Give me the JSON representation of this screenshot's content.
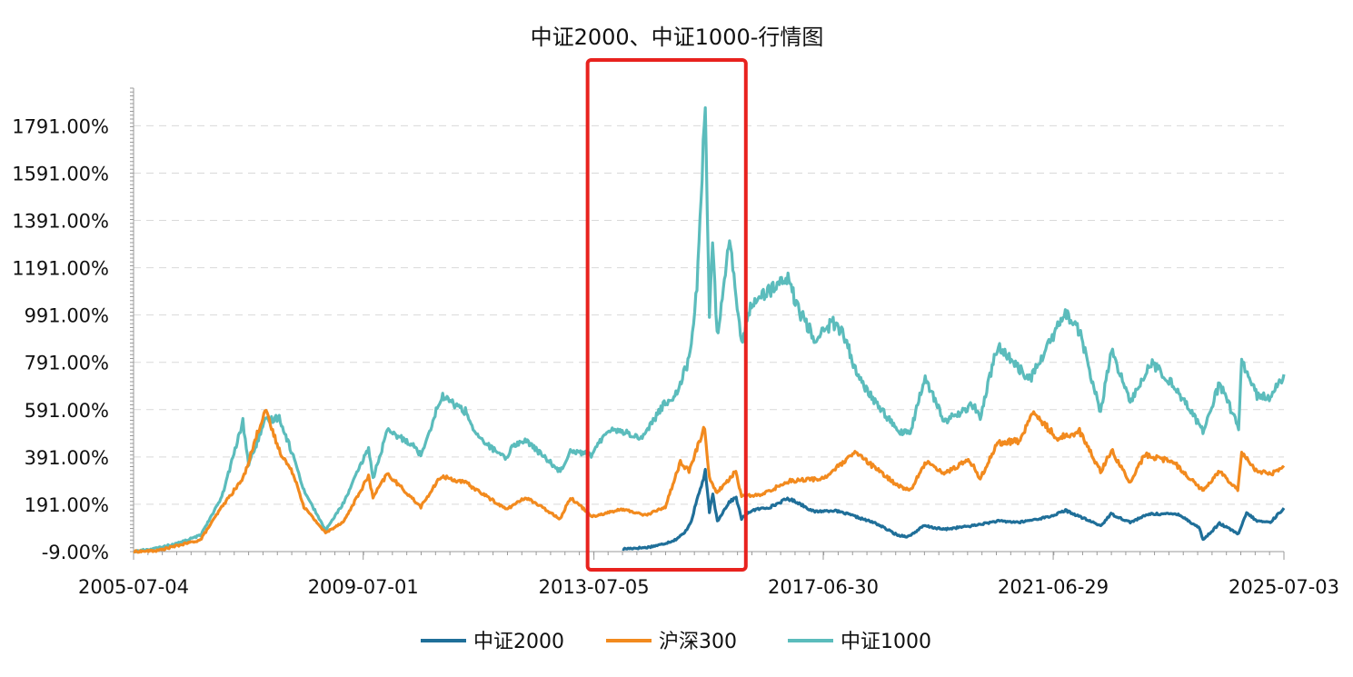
{
  "chart_data": {
    "type": "line",
    "title": "中证2000、中证1000-行情图",
    "xlabel": "",
    "ylabel": "",
    "x_range": [
      "2005-07-04",
      "2025-07-03"
    ],
    "x_ticks": [
      "2005-07-04",
      "2009-07-01",
      "2013-07-05",
      "2017-06-30",
      "2021-06-29",
      "2025-07-03"
    ],
    "y_ticks": [
      -9,
      191,
      391,
      591,
      791,
      991,
      1191,
      1391,
      1591,
      1791
    ],
    "y_tick_labels": [
      "-9.00%",
      "191.00%",
      "391.00%",
      "591.00%",
      "791.00%",
      "991.00%",
      "1191.00%",
      "1391.00%",
      "1591.00%",
      "1791.00%"
    ],
    "ylim": [
      -9,
      1950
    ],
    "y_unit": "%",
    "grid": "horizontal-dashed",
    "legend_position": "bottom",
    "highlight_range": [
      "2013-07-05",
      "2016-01-15"
    ],
    "series": [
      {
        "name": "中证2000",
        "color": "#1f6f99",
        "points": [
          [
            "2014-01-02",
            2
          ],
          [
            "2014-03-01",
            5
          ],
          [
            "2014-06-01",
            8
          ],
          [
            "2014-09-01",
            20
          ],
          [
            "2014-12-01",
            40
          ],
          [
            "2015-02-01",
            70
          ],
          [
            "2015-03-15",
            120
          ],
          [
            "2015-04-20",
            210
          ],
          [
            "2015-06-01",
            300
          ],
          [
            "2015-06-12",
            330
          ],
          [
            "2015-07-08",
            160
          ],
          [
            "2015-07-30",
            230
          ],
          [
            "2015-08-28",
            120
          ],
          [
            "2015-09-15",
            140
          ],
          [
            "2015-11-10",
            200
          ],
          [
            "2015-12-25",
            220
          ],
          [
            "2016-01-28",
            130
          ],
          [
            "2016-04-01",
            165
          ],
          [
            "2016-08-01",
            180
          ],
          [
            "2016-11-15",
            215
          ],
          [
            "2017-01-15",
            200
          ],
          [
            "2017-05-01",
            160
          ],
          [
            "2017-09-01",
            165
          ],
          [
            "2017-12-01",
            150
          ],
          [
            "2018-06-01",
            110
          ],
          [
            "2018-10-15",
            60
          ],
          [
            "2018-12-25",
            55
          ],
          [
            "2019-04-01",
            100
          ],
          [
            "2019-08-01",
            85
          ],
          [
            "2020-02-01",
            100
          ],
          [
            "2020-07-10",
            120
          ],
          [
            "2020-12-01",
            115
          ],
          [
            "2021-06-15",
            140
          ],
          [
            "2021-09-15",
            165
          ],
          [
            "2022-04-27",
            100
          ],
          [
            "2022-07-01",
            150
          ],
          [
            "2022-10-31",
            115
          ],
          [
            "2023-03-01",
            150
          ],
          [
            "2023-09-01",
            150
          ],
          [
            "2024-01-15",
            90
          ],
          [
            "2024-02-05",
            40
          ],
          [
            "2024-05-20",
            110
          ],
          [
            "2024-09-18",
            65
          ],
          [
            "2024-11-08",
            155
          ],
          [
            "2025-01-13",
            120
          ],
          [
            "2025-04-08",
            115
          ],
          [
            "2025-07-03",
            175
          ]
        ]
      },
      {
        "name": "沪深300",
        "color": "#f28a1e",
        "points": [
          [
            "2005-07-04",
            -9
          ],
          [
            "2005-12-01",
            -5
          ],
          [
            "2006-05-01",
            20
          ],
          [
            "2006-09-01",
            40
          ],
          [
            "2007-01-15",
            180
          ],
          [
            "2007-05-30",
            300
          ],
          [
            "2007-10-16",
            590
          ],
          [
            "2008-01-15",
            420
          ],
          [
            "2008-04-20",
            310
          ],
          [
            "2008-06-20",
            180
          ],
          [
            "2008-11-04",
            70
          ],
          [
            "2009-03-01",
            120
          ],
          [
            "2009-08-04",
            310
          ],
          [
            "2009-09-01",
            220
          ],
          [
            "2009-12-01",
            320
          ],
          [
            "2010-07-02",
            180
          ],
          [
            "2010-11-08",
            310
          ],
          [
            "2011-04-18",
            280
          ],
          [
            "2011-12-27",
            170
          ],
          [
            "2012-05-01",
            220
          ],
          [
            "2012-12-03",
            130
          ],
          [
            "2013-02-06",
            220
          ],
          [
            "2013-06-25",
            140
          ],
          [
            "2014-01-01",
            170
          ],
          [
            "2014-06-01",
            145
          ],
          [
            "2014-10-01",
            180
          ],
          [
            "2015-01-05",
            370
          ],
          [
            "2015-03-01",
            330
          ],
          [
            "2015-06-08",
            520
          ],
          [
            "2015-07-08",
            300
          ],
          [
            "2015-08-26",
            240
          ],
          [
            "2015-12-23",
            330
          ],
          [
            "2016-01-28",
            225
          ],
          [
            "2016-06-01",
            230
          ],
          [
            "2016-11-25",
            290
          ],
          [
            "2017-06-30",
            300
          ],
          [
            "2018-01-24",
            410
          ],
          [
            "2018-06-01",
            340
          ],
          [
            "2018-10-18",
            270
          ],
          [
            "2019-01-03",
            250
          ],
          [
            "2019-04-20",
            375
          ],
          [
            "2019-08-06",
            320
          ],
          [
            "2020-01-13",
            380
          ],
          [
            "2020-03-23",
            300
          ],
          [
            "2020-07-10",
            450
          ],
          [
            "2020-12-01",
            460
          ],
          [
            "2021-02-18",
            580
          ],
          [
            "2021-07-28",
            470
          ],
          [
            "2021-12-13",
            500
          ],
          [
            "2022-04-26",
            330
          ],
          [
            "2022-07-04",
            420
          ],
          [
            "2022-10-31",
            280
          ],
          [
            "2023-01-30",
            400
          ],
          [
            "2023-08-01",
            370
          ],
          [
            "2024-02-02",
            250
          ],
          [
            "2024-05-20",
            330
          ],
          [
            "2024-09-13",
            255
          ],
          [
            "2024-10-08",
            410
          ],
          [
            "2025-01-13",
            330
          ],
          [
            "2025-04-08",
            320
          ],
          [
            "2025-07-03",
            345
          ]
        ]
      },
      {
        "name": "中证1000",
        "color": "#5bbcbc",
        "points": [
          [
            "2005-07-04",
            -9
          ],
          [
            "2005-12-01",
            5
          ],
          [
            "2006-05-01",
            30
          ],
          [
            "2006-09-01",
            60
          ],
          [
            "2007-01-15",
            220
          ],
          [
            "2007-05-29",
            540
          ],
          [
            "2007-07-05",
            360
          ],
          [
            "2007-10-16",
            540
          ],
          [
            "2008-01-15",
            560
          ],
          [
            "2008-04-20",
            380
          ],
          [
            "2008-06-20",
            250
          ],
          [
            "2008-11-04",
            80
          ],
          [
            "2009-03-01",
            200
          ],
          [
            "2009-08-04",
            430
          ],
          [
            "2009-09-01",
            300
          ],
          [
            "2009-12-01",
            500
          ],
          [
            "2010-05-01",
            450
          ],
          [
            "2010-07-02",
            400
          ],
          [
            "2010-11-11",
            650
          ],
          [
            "2011-04-18",
            580
          ],
          [
            "2011-06-20",
            480
          ],
          [
            "2011-12-27",
            380
          ],
          [
            "2012-02-01",
            440
          ],
          [
            "2012-05-01",
            460
          ],
          [
            "2012-12-03",
            330
          ],
          [
            "2013-02-06",
            420
          ],
          [
            "2013-06-25",
            400
          ],
          [
            "2013-10-01",
            510
          ],
          [
            "2014-01-01",
            500
          ],
          [
            "2014-05-01",
            470
          ],
          [
            "2014-10-01",
            620
          ],
          [
            "2014-12-01",
            650
          ],
          [
            "2015-03-01",
            800
          ],
          [
            "2015-04-20",
            1100
          ],
          [
            "2015-06-12",
            1890
          ],
          [
            "2015-07-08",
            1000
          ],
          [
            "2015-07-28",
            1300
          ],
          [
            "2015-08-26",
            900
          ],
          [
            "2015-09-15",
            1000
          ],
          [
            "2015-11-13",
            1330
          ],
          [
            "2016-01-28",
            860
          ],
          [
            "2016-04-01",
            1050
          ],
          [
            "2016-08-01",
            1100
          ],
          [
            "2016-11-25",
            1140
          ],
          [
            "2017-01-16",
            1020
          ],
          [
            "2017-05-10",
            890
          ],
          [
            "2017-09-01",
            960
          ],
          [
            "2017-11-13",
            900
          ],
          [
            "2018-02-09",
            720
          ],
          [
            "2018-06-01",
            620
          ],
          [
            "2018-10-18",
            500
          ],
          [
            "2019-01-03",
            490
          ],
          [
            "2019-04-08",
            730
          ],
          [
            "2019-08-06",
            540
          ],
          [
            "2020-02-04",
            610
          ],
          [
            "2020-03-23",
            560
          ],
          [
            "2020-07-10",
            860
          ],
          [
            "2020-11-02",
            780
          ],
          [
            "2021-02-04",
            720
          ],
          [
            "2021-09-14",
            1000
          ],
          [
            "2021-12-13",
            920
          ],
          [
            "2022-04-26",
            580
          ],
          [
            "2022-07-04",
            840
          ],
          [
            "2022-10-31",
            620
          ],
          [
            "2023-03-06",
            790
          ],
          [
            "2023-08-01",
            700
          ],
          [
            "2024-02-05",
            500
          ],
          [
            "2024-05-20",
            700
          ],
          [
            "2024-09-18",
            520
          ],
          [
            "2024-10-08",
            800
          ],
          [
            "2025-01-13",
            650
          ],
          [
            "2025-04-08",
            640
          ],
          [
            "2025-07-03",
            740
          ]
        ]
      }
    ]
  }
}
